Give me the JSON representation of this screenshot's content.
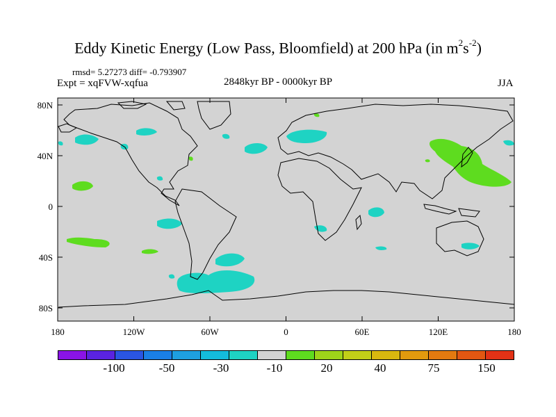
{
  "title": {
    "main": "Eddy Kinetic Energy (Low Pass, Bloomfield) at 200 hPa (in m",
    "sup1": "2",
    "mid": "s",
    "sup2": "-2",
    "end": ")"
  },
  "stats": "rmsd= 5.27273 diff= -0.793907",
  "expt": "Expt = xqFVW-xqfua",
  "period": "2848kyr BP - 0000kyr BP",
  "season": "JJA",
  "axes": {
    "x_ticks": [
      "180",
      "120W",
      "60W",
      "0",
      "60E",
      "120E",
      "180"
    ],
    "y_ticks": [
      "80N",
      "40N",
      "0",
      "40S",
      "80S"
    ]
  },
  "colorbar": {
    "colors": [
      "#8a14e6",
      "#5a23e0",
      "#2a55e3",
      "#1a7fe6",
      "#1e9fe0",
      "#14bcdc",
      "#1ed3c3",
      "#d3d3d3",
      "#5edc1f",
      "#9ed41a",
      "#c2cf18",
      "#d8b80f",
      "#e29a0e",
      "#e47a10",
      "#e25712",
      "#e23216"
    ],
    "labels": [
      "-100",
      "-50",
      "-30",
      "-10",
      "20",
      "40",
      "75",
      "150"
    ]
  },
  "colors": {
    "background_field": "#d3d3d3",
    "negative_fill": "#1ed3c3",
    "positive_fill": "#5edc1f"
  }
}
